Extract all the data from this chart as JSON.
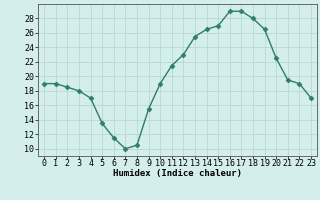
{
  "x": [
    0,
    1,
    2,
    3,
    4,
    5,
    6,
    7,
    8,
    9,
    10,
    11,
    12,
    13,
    14,
    15,
    16,
    17,
    18,
    19,
    20,
    21,
    22,
    23
  ],
  "y": [
    19,
    19,
    18.5,
    18,
    17,
    13.5,
    11.5,
    10,
    10.5,
    15.5,
    19,
    21.5,
    23,
    25.5,
    26.5,
    27,
    29,
    29,
    28,
    26.5,
    22.5,
    19.5,
    19,
    17
  ],
  "line_color": "#2e7d6e",
  "marker": "D",
  "marker_size": 2.5,
  "bg_color": "#d4eeec",
  "grid_color": "#b8d8d4",
  "xlabel": "Humidex (Indice chaleur)",
  "xlim": [
    -0.5,
    23.5
  ],
  "ylim": [
    9,
    30
  ],
  "yticks": [
    10,
    12,
    14,
    16,
    18,
    20,
    22,
    24,
    26,
    28
  ],
  "xticks": [
    0,
    1,
    2,
    3,
    4,
    5,
    6,
    7,
    8,
    9,
    10,
    11,
    12,
    13,
    14,
    15,
    16,
    17,
    18,
    19,
    20,
    21,
    22,
    23
  ],
  "label_fontsize": 6.5,
  "tick_fontsize": 6
}
